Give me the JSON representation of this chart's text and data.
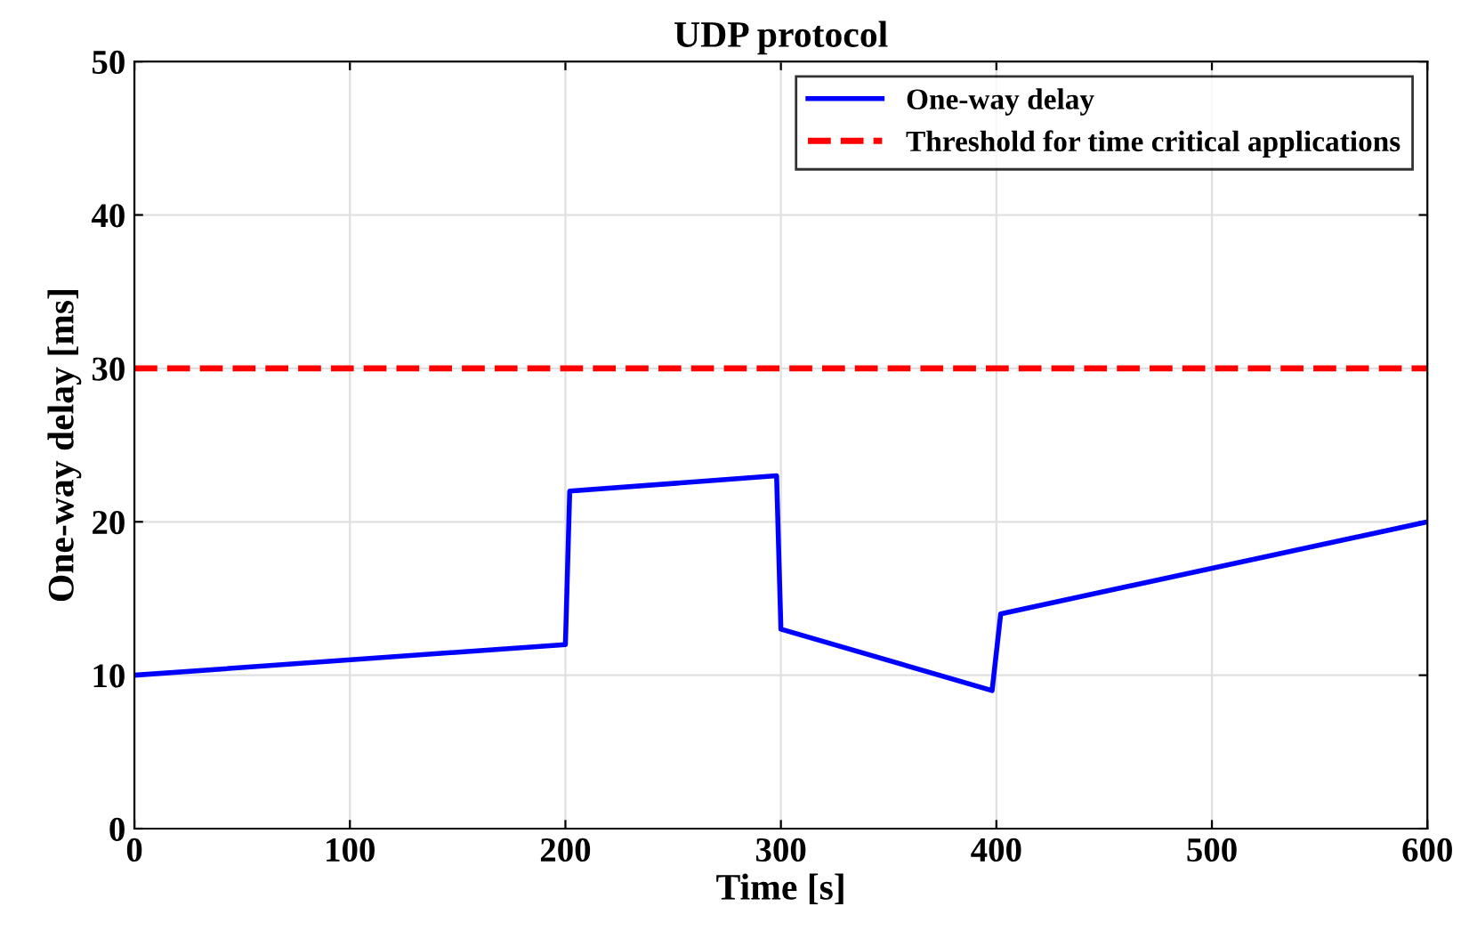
{
  "chart_data": {
    "type": "line",
    "title": "UDP protocol",
    "xlabel": "Time [s]",
    "ylabel": "One-way delay [ms]",
    "series": [
      {
        "name": "One-way delay",
        "color": "#0000ff",
        "x": [
          0,
          200,
          202,
          298,
          300,
          398,
          402,
          600
        ],
        "values": [
          10,
          12,
          22,
          23,
          13,
          9,
          14,
          20
        ]
      }
    ],
    "ref_lines": [
      {
        "axis": "y",
        "value": 30,
        "label": "Threshold for time critical applications",
        "color": "#ff0000",
        "line_style": "dashed"
      }
    ],
    "xlim": [
      0,
      600
    ],
    "ylim": [
      0,
      50
    ],
    "xticks": [
      0,
      100,
      200,
      300,
      400,
      500,
      600
    ],
    "yticks": [
      0,
      10,
      20,
      30,
      40,
      50
    ],
    "grid": true,
    "legend": "top right",
    "line_style": "solid",
    "marker": "none"
  }
}
